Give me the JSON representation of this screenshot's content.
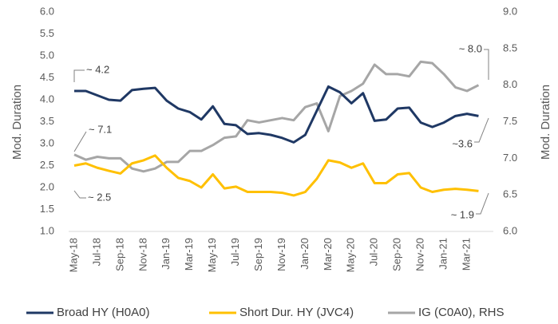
{
  "chart_data": {
    "type": "line",
    "categories": [
      "May-18",
      null,
      "Jul-18",
      null,
      "Sep-18",
      null,
      "Nov-18",
      null,
      "Jan-19",
      null,
      "Mar-19",
      null,
      "May-19",
      null,
      "Jul-19",
      null,
      "Sep-19",
      null,
      "Nov-19",
      null,
      "Jan-20",
      null,
      "Mar-20",
      null,
      "May-20",
      null,
      "Jul-20",
      null,
      "Sep-20",
      null,
      "Nov-20",
      null,
      "Jan-21",
      null,
      "Mar-21",
      null
    ],
    "series": [
      {
        "name": "Broad HY (H0A0)",
        "color": "#1f3864",
        "values": [
          4.2,
          4.2,
          4.1,
          4.0,
          3.98,
          4.22,
          4.25,
          4.27,
          3.98,
          3.8,
          3.72,
          3.55,
          3.85,
          3.45,
          3.42,
          3.22,
          3.24,
          3.2,
          3.13,
          3.03,
          3.2,
          3.75,
          4.3,
          4.17,
          3.92,
          4.15,
          3.52,
          3.55,
          3.8,
          3.82,
          3.48,
          3.38,
          3.48,
          3.63,
          3.68,
          3.63
        ]
      },
      {
        "name": "Short Dur. HY (JVC4)",
        "color": "#ffc000",
        "values": [
          2.5,
          2.55,
          2.45,
          2.38,
          2.32,
          2.55,
          2.62,
          2.73,
          2.45,
          2.22,
          2.15,
          2.0,
          2.3,
          1.98,
          2.02,
          1.9,
          1.9,
          1.9,
          1.88,
          1.82,
          1.9,
          2.2,
          2.62,
          2.57,
          2.45,
          2.55,
          2.1,
          2.1,
          2.3,
          2.33,
          2.0,
          1.9,
          1.95,
          1.97,
          1.95,
          1.92
        ]
      },
      {
        "name": "IG (C0A0), RHS",
        "color": "#a6a6a6",
        "axis": "y2",
        "values": [
          7.05,
          6.98,
          7.02,
          7.0,
          7.0,
          6.86,
          6.82,
          6.86,
          6.95,
          6.95,
          7.1,
          7.1,
          7.18,
          7.28,
          7.3,
          7.52,
          7.49,
          7.52,
          7.55,
          7.52,
          7.7,
          7.75,
          7.37,
          7.85,
          7.92,
          8.02,
          8.28,
          8.15,
          8.15,
          8.12,
          8.32,
          8.3,
          8.15,
          7.97,
          7.92,
          8.0
        ]
      }
    ],
    "ylabel": "Mod. Duration",
    "y2label": "Mod. Duration",
    "ylim": [
      1.0,
      6.0
    ],
    "yticks": [
      {
        "value": 1.0,
        "label": "1.0"
      },
      {
        "value": 1.5,
        "label": "1.5"
      },
      {
        "value": 2.0,
        "label": "2.0"
      },
      {
        "value": 2.5,
        "label": "2.5"
      },
      {
        "value": 3.0,
        "label": "3.0"
      },
      {
        "value": 3.5,
        "label": "3.5"
      },
      {
        "value": 4.0,
        "label": "4.0"
      },
      {
        "value": 4.5,
        "label": "4.5"
      },
      {
        "value": 5.0,
        "label": "5.0"
      },
      {
        "value": 5.5,
        "label": "5.5"
      },
      {
        "value": 6.0,
        "label": "6.0"
      }
    ],
    "y2lim": [
      6.0,
      9.0
    ],
    "y2ticks": [
      {
        "value": 6.0,
        "label": "6.0"
      },
      {
        "value": 6.5,
        "label": "6.5"
      },
      {
        "value": 7.0,
        "label": "7.0"
      },
      {
        "value": 7.5,
        "label": "7.5"
      },
      {
        "value": 8.0,
        "label": "8.0"
      },
      {
        "value": 8.5,
        "label": "8.5"
      },
      {
        "value": 9.0,
        "label": "9.0"
      }
    ],
    "annotations": [
      "~ 4.2",
      "~ 7.1",
      "~ 2.5",
      "~ 8.0",
      "~3.6",
      "~ 1.9"
    ],
    "grid": false,
    "legend": "bottom"
  }
}
